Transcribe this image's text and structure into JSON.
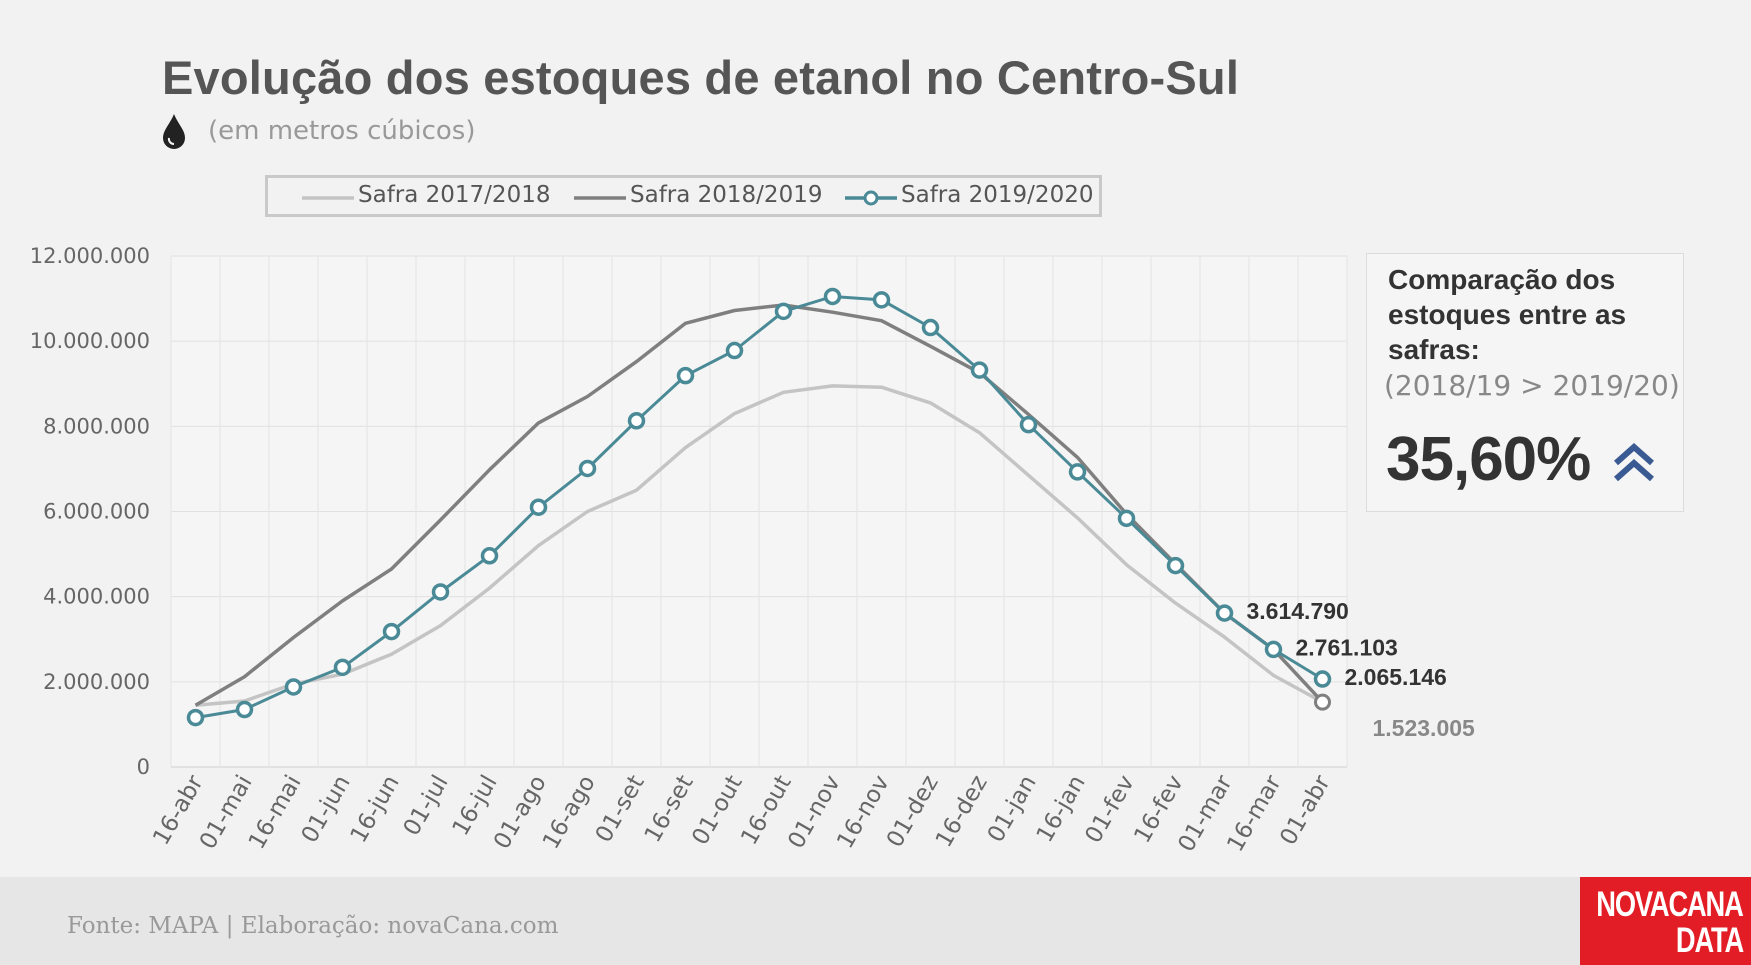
{
  "title": "Evolução dos estoques de etanol no Centro-Sul",
  "subtitle": "(em metros cúbicos)",
  "icons": {
    "drop": "water-drop-icon",
    "up": "double-chevron-up-icon"
  },
  "colors": {
    "s1": "#c4c4c4",
    "s2": "#7f7f7f",
    "s3": "#4a8a96",
    "accent": "#3a5a93",
    "logo_bg": "#e21d26"
  },
  "panel": {
    "heading": "Comparação dos estoques entre as safras:",
    "sub": "(2018/19 > 2019/20)",
    "value": "35,60%"
  },
  "footer": {
    "source": "Fonte: MAPA  | Elaboração: novaCana.com"
  },
  "logo": {
    "line1": "NOVACANA",
    "line2": "DATA"
  },
  "chart_data": {
    "type": "line",
    "title": "Evolução dos estoques de etanol no Centro-Sul",
    "ylabel": "",
    "xlabel": "",
    "ylim": [
      0,
      12000000
    ],
    "yticks": [
      0,
      2000000,
      4000000,
      6000000,
      8000000,
      10000000,
      12000000
    ],
    "ytick_labels": [
      "0",
      "2.000.000",
      "4.000.000",
      "6.000.000",
      "8.000.000",
      "10.000.000",
      "12.000.000"
    ],
    "legend_position": "top",
    "grid": true,
    "categories": [
      "16-abr",
      "01-mai",
      "16-mai",
      "01-jun",
      "16-jun",
      "01-jul",
      "16-jul",
      "01-ago",
      "16-ago",
      "01-set",
      "16-set",
      "01-out",
      "16-out",
      "01-nov",
      "16-nov",
      "01-dez",
      "16-dez",
      "01-jan",
      "16-jan",
      "01-fev",
      "16-fev",
      "01-mar",
      "16-mar",
      "01-abr"
    ],
    "series": [
      {
        "name": "Safra 2017/2018",
        "style": "light",
        "values": [
          1450000,
          1550000,
          1950000,
          2180000,
          2650000,
          3320000,
          4200000,
          5200000,
          6000000,
          6500000,
          7500000,
          8300000,
          8800000,
          8950000,
          8920000,
          8550000,
          7850000,
          6850000,
          5850000,
          4750000,
          3850000,
          3050000,
          2150000,
          1523005
        ]
      },
      {
        "name": "Safra 2018/2019",
        "style": "dark",
        "values": [
          1450000,
          2120000,
          3040000,
          3900000,
          4650000,
          5800000,
          6980000,
          8080000,
          8700000,
          9520000,
          10420000,
          10720000,
          10850000,
          10680000,
          10480000,
          9880000,
          9260000,
          8280000,
          7270000,
          5940000,
          4770000,
          3614790,
          2761103,
          1523005
        ]
      },
      {
        "name": "Safra 2019/2020",
        "style": "markers",
        "values": [
          1160000,
          1350000,
          1880000,
          2340000,
          3180000,
          4110000,
          4960000,
          6100000,
          7010000,
          8130000,
          9190000,
          9780000,
          10700000,
          11050000,
          10970000,
          10320000,
          9320000,
          8040000,
          6930000,
          5840000,
          4730000,
          3614790,
          2761103,
          2065146
        ]
      }
    ],
    "annotations": [
      {
        "text": "3.614.790",
        "series": "Safra 2019/2020",
        "index": 21
      },
      {
        "text": "2.761.103",
        "series": "Safra 2019/2020",
        "index": 22
      },
      {
        "text": "2.065.146",
        "series": "Safra 2019/2020",
        "index": 23
      },
      {
        "text": "1.523.005",
        "series": "Safra 2018/2019",
        "index": 23
      }
    ]
  }
}
